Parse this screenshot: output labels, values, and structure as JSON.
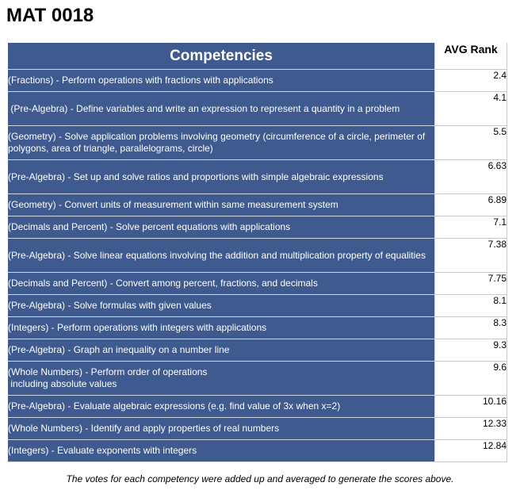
{
  "title": "MAT 0018",
  "table": {
    "header_competencies": "Competencies",
    "header_rank": "AVG Rank",
    "rows": [
      {
        "text": "(Fractions) - Perform operations with fractions with applications",
        "rank": "2.4"
      },
      {
        "text": " (Pre-Algebra) - Define variables and write an expression to represent a quantity in a problem",
        "rank": "4.1"
      },
      {
        "text": "(Geometry) - Solve application problems involving geometry (circumference of a circle, perimeter of polygons, area of triangle, parallelograms, circle)",
        "rank": "5.5"
      },
      {
        "text": "(Pre-Algebra) - Set up and solve ratios and proportions with simple algebraic expressions",
        "rank": "6.63"
      },
      {
        "text": "(Geometry) - Convert units of measurement within same measurement system",
        "rank": "6.89"
      },
      {
        "text": "(Decimals and Percent) - Solve percent equations with applications",
        "rank": "7.1"
      },
      {
        "text": "(Pre-Algebra) - Solve linear equations involving the addition and multiplication property of equalities",
        "rank": "7.38"
      },
      {
        "text": "(Decimals and Percent) - Convert among percent, fractions, and decimals",
        "rank": "7.75"
      },
      {
        "text": "(Pre-Algebra) - Solve formulas with given values",
        "rank": "8.1"
      },
      {
        "text": "(Integers) - Perform operations with integers with applications",
        "rank": "8.3"
      },
      {
        "text": "(Pre-Algebra) - Graph an inequality on a number line",
        "rank": "9.3"
      },
      {
        "text": "(Whole Numbers) - Perform order of operations\n including absolute values",
        "rank": "9.6"
      },
      {
        "text": "(Pre-Algebra) - Evaluate algebraic expressions (e.g. find value of 3x when x=2)",
        "rank": "10.16"
      },
      {
        "text": "(Whole Numbers) - Identify and apply properties of real numbers",
        "rank": "12.33"
      },
      {
        "text": "(Integers) - Evaluate exponents with integers",
        "rank": "12.84"
      }
    ]
  },
  "footnote": "The votes for each competency were added up and averaged to generate the scores above."
}
